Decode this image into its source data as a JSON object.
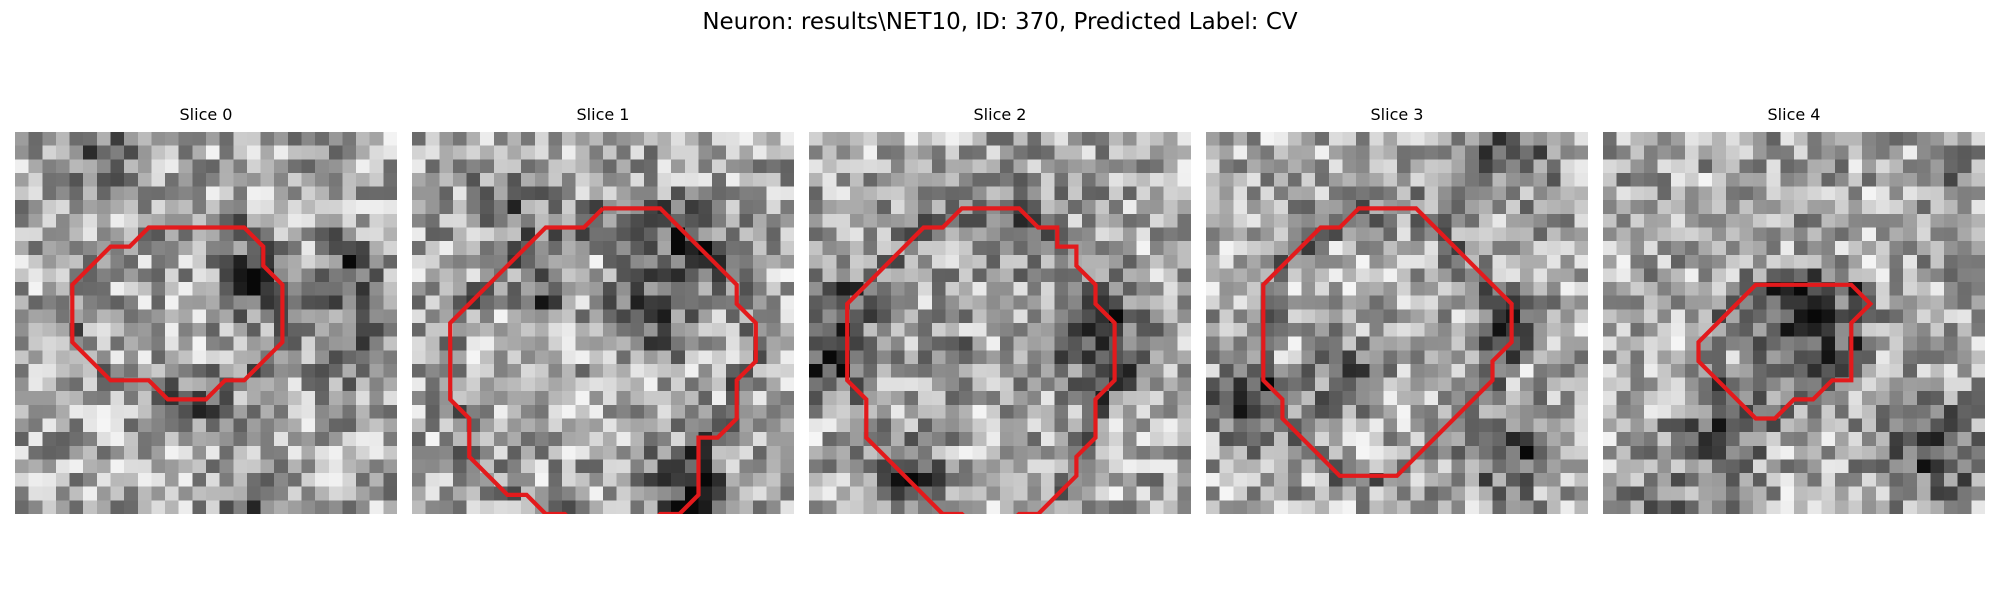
{
  "figure": {
    "title": "Neuron: results\\NET10, ID: 370, Predicted Label: CV",
    "contour_color": "#e31a1c",
    "colormap": "gray",
    "slices": [
      {
        "title": "Slice 0",
        "outline": [
          [
            9,
            5
          ],
          [
            12,
            5
          ],
          [
            13,
            6
          ],
          [
            13,
            7
          ],
          [
            14,
            8
          ],
          [
            14,
            11
          ],
          [
            13,
            12
          ],
          [
            12,
            13
          ],
          [
            11,
            13
          ],
          [
            10,
            14
          ],
          [
            8,
            14
          ],
          [
            7,
            13
          ],
          [
            5,
            13
          ],
          [
            4,
            12
          ],
          [
            3,
            11
          ],
          [
            3,
            8
          ],
          [
            4,
            7
          ],
          [
            5,
            6
          ],
          [
            6,
            6
          ],
          [
            7,
            5
          ],
          [
            9,
            5
          ]
        ]
      },
      {
        "title": "Slice 1",
        "outline": [
          [
            10,
            4
          ],
          [
            13,
            4
          ],
          [
            15,
            6
          ],
          [
            16,
            7
          ],
          [
            17,
            8
          ],
          [
            17,
            9
          ],
          [
            18,
            10
          ],
          [
            18,
            12
          ],
          [
            17,
            13
          ],
          [
            17,
            15
          ],
          [
            16,
            16
          ],
          [
            15,
            16
          ],
          [
            15,
            19
          ],
          [
            14,
            20
          ],
          [
            13,
            20
          ],
          [
            12,
            21
          ],
          [
            9,
            21
          ],
          [
            8,
            20
          ],
          [
            7,
            20
          ],
          [
            6,
            19
          ],
          [
            5,
            19
          ],
          [
            4,
            18
          ],
          [
            3,
            17
          ],
          [
            3,
            15
          ],
          [
            2,
            14
          ],
          [
            2,
            10
          ],
          [
            3,
            9
          ],
          [
            4,
            8
          ],
          [
            5,
            7
          ],
          [
            6,
            6
          ],
          [
            7,
            5
          ],
          [
            9,
            5
          ],
          [
            10,
            4
          ]
        ]
      },
      {
        "title": "Slice 2",
        "outline": [
          [
            9,
            4
          ],
          [
            11,
            4
          ],
          [
            12,
            5
          ],
          [
            13,
            5
          ],
          [
            13,
            6
          ],
          [
            14,
            6
          ],
          [
            14,
            7
          ],
          [
            15,
            8
          ],
          [
            15,
            9
          ],
          [
            16,
            10
          ],
          [
            16,
            13
          ],
          [
            15,
            14
          ],
          [
            15,
            16
          ],
          [
            14,
            17
          ],
          [
            14,
            18
          ],
          [
            13,
            19
          ],
          [
            12,
            20
          ],
          [
            11,
            20
          ],
          [
            10,
            21
          ],
          [
            9,
            21
          ],
          [
            8,
            20
          ],
          [
            7,
            20
          ],
          [
            5,
            18
          ],
          [
            4,
            17
          ],
          [
            3,
            16
          ],
          [
            3,
            14
          ],
          [
            2,
            13
          ],
          [
            2,
            9
          ],
          [
            3,
            8
          ],
          [
            4,
            7
          ],
          [
            5,
            6
          ],
          [
            6,
            5
          ],
          [
            7,
            5
          ],
          [
            8,
            4
          ],
          [
            9,
            4
          ]
        ]
      },
      {
        "title": "Slice 3",
        "outline": [
          [
            9,
            4
          ],
          [
            11,
            4
          ],
          [
            12,
            5
          ],
          [
            13,
            6
          ],
          [
            14,
            7
          ],
          [
            15,
            8
          ],
          [
            16,
            9
          ],
          [
            16,
            11
          ],
          [
            15,
            12
          ],
          [
            15,
            13
          ],
          [
            14,
            14
          ],
          [
            13,
            15
          ],
          [
            12,
            16
          ],
          [
            11,
            17
          ],
          [
            10,
            18
          ],
          [
            7,
            18
          ],
          [
            6,
            17
          ],
          [
            5,
            16
          ],
          [
            4,
            15
          ],
          [
            4,
            14
          ],
          [
            3,
            13
          ],
          [
            3,
            8
          ],
          [
            4,
            7
          ],
          [
            5,
            6
          ],
          [
            6,
            5
          ],
          [
            7,
            5
          ],
          [
            8,
            4
          ],
          [
            9,
            4
          ]
        ]
      },
      {
        "title": "Slice 4",
        "outline": [
          [
            10,
            8
          ],
          [
            13,
            8
          ],
          [
            14,
            9
          ],
          [
            13,
            10
          ],
          [
            13,
            13
          ],
          [
            12,
            13
          ],
          [
            11,
            14
          ],
          [
            10,
            14
          ],
          [
            9,
            15
          ],
          [
            8,
            15
          ],
          [
            7,
            14
          ],
          [
            6,
            13
          ],
          [
            5,
            12
          ],
          [
            5,
            11
          ],
          [
            6,
            10
          ],
          [
            7,
            9
          ],
          [
            8,
            8
          ],
          [
            10,
            8
          ]
        ]
      }
    ]
  }
}
